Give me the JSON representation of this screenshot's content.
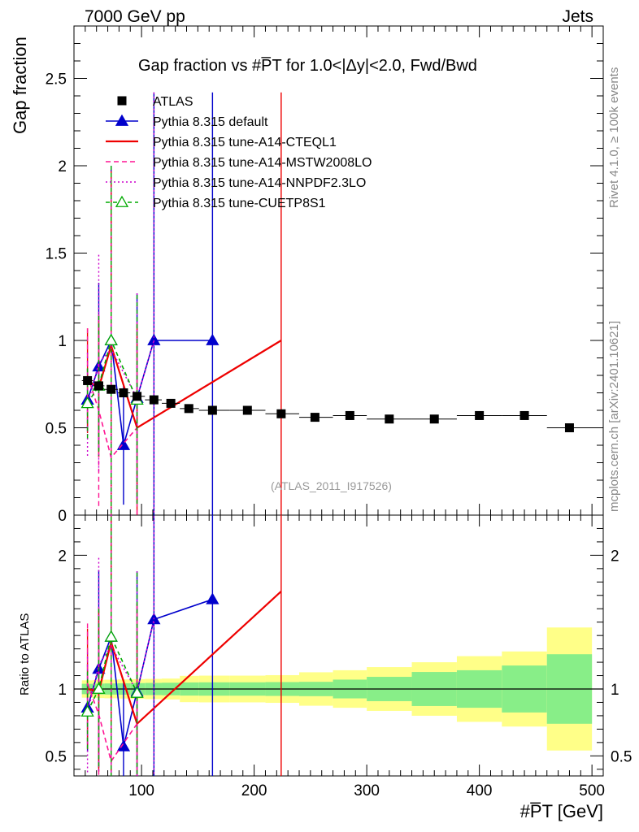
{
  "header": {
    "energy_label": "7000 GeV pp",
    "category_label": "Jets",
    "plot_title": "Gap fraction vs #P̅T for 1.0<|Δy|<2.0, Fwd/Bwd",
    "analysis_id": "(ATLAS_2011_I917526)",
    "side_label_rivet": "Rivet 4.1.0, ≥ 100k events",
    "side_label_mcplots": "mcplots.cern.ch [arXiv:2401.10621]"
  },
  "chart_data": {
    "type": "scatter",
    "xlabel": "#P̅T [GeV]",
    "ylabel": "Gap fraction",
    "ratio_ylabel": "Ratio to ATLAS",
    "xlim": [
      40,
      510
    ],
    "ylim": [
      0,
      2.8
    ],
    "ratio_ylim": [
      0.35,
      2.3
    ],
    "xticks": [
      100,
      200,
      300,
      400,
      500
    ],
    "yticks": [
      0.5,
      1,
      1.5,
      2,
      2.5
    ],
    "yticklabels": [
      "0.5",
      "1",
      "1.5",
      "2",
      "2.5"
    ],
    "ratio_yticks": [
      0.5,
      1,
      2
    ],
    "ratio_yticklabels": [
      "0.5",
      "1",
      "2"
    ],
    "y_zero_label": "0",
    "data": {
      "name": "ATLAS",
      "x": [
        52,
        62,
        73,
        84,
        96,
        111,
        126,
        142,
        163,
        194,
        224,
        254,
        285,
        320,
        360,
        400,
        440,
        480
      ],
      "y": [
        0.77,
        0.74,
        0.72,
        0.7,
        0.68,
        0.66,
        0.64,
        0.61,
        0.6,
        0.6,
        0.58,
        0.56,
        0.57,
        0.55,
        0.55,
        0.57,
        0.57,
        0.5
      ],
      "xlo": [
        47,
        57,
        67,
        79,
        90,
        103,
        118,
        134,
        151,
        178,
        210,
        240,
        270,
        300,
        340,
        380,
        420,
        460
      ],
      "xhi": [
        57,
        67,
        79,
        90,
        103,
        118,
        134,
        151,
        178,
        210,
        240,
        270,
        300,
        340,
        380,
        420,
        460,
        500
      ],
      "stat": [
        0.03,
        0.03,
        0.03,
        0.03,
        0.03,
        0.03,
        0.03,
        0.03,
        0.03,
        0.03,
        0.03,
        0.03,
        0.04,
        0.05,
        0.07,
        0.08,
        0.1,
        0.13
      ],
      "tot": [
        0.05,
        0.05,
        0.05,
        0.05,
        0.05,
        0.05,
        0.05,
        0.06,
        0.06,
        0.06,
        0.06,
        0.07,
        0.08,
        0.09,
        0.11,
        0.14,
        0.16,
        0.23
      ]
    },
    "series": [
      {
        "name": "Pythia 8.315 default",
        "color": "#0000cc",
        "dash": "",
        "marker": "triangle-filled",
        "x": [
          52,
          62,
          73,
          84,
          96,
          111,
          163
        ],
        "y": [
          0.66,
          0.85,
          1.0,
          0.4,
          0.67,
          1.0,
          1.0
        ],
        "err": [
          0.18,
          0.48,
          1.0,
          0.34,
          0.6,
          1.42,
          1.42
        ],
        "ratio": [
          0.86,
          1.15,
          1.39,
          0.57,
          0.98,
          1.52,
          1.67
        ],
        "ratio_err": [
          0.33,
          0.74,
          1.5,
          0.5,
          0.9,
          2.2,
          2.4
        ]
      },
      {
        "name": "Pythia 8.315 tune-A14-CTEQL1",
        "color": "#ee0000",
        "dash": "",
        "marker": "none",
        "x": [
          52,
          62,
          73,
          96,
          224
        ],
        "y": [
          0.77,
          0.73,
          0.97,
          0.5,
          1.0
        ],
        "err": [
          0.3,
          0.4,
          1.0,
          0.6,
          1.42
        ],
        "ratio": [
          1.0,
          0.98,
          1.35,
          0.74,
          1.73
        ],
        "ratio_err": [
          0.45,
          0.6,
          1.5,
          0.9,
          2.4
        ]
      },
      {
        "name": "Pythia 8.315 tune-A14-MSTW2008LO",
        "color": "#ff1493",
        "dash": "6,4",
        "marker": "none",
        "x": [
          52,
          62,
          73,
          96
        ],
        "y": [
          0.8,
          0.6,
          0.33,
          0.5
        ],
        "err": [
          0.27,
          0.55,
          1.0,
          0.6
        ],
        "ratio": [
          1.04,
          0.81,
          0.46,
          0.74
        ],
        "ratio_err": [
          0.45,
          0.8,
          1.5,
          0.9
        ]
      },
      {
        "name": "Pythia 8.315 tune-A14-NNPDF2.3LO",
        "color": "#cc00cc",
        "dash": "2,3",
        "marker": "none",
        "x": [
          52,
          62,
          73,
          96,
          111
        ],
        "y": [
          0.63,
          0.87,
          0.95,
          0.67,
          1.0
        ],
        "err": [
          0.3,
          0.62,
          1.0,
          0.6,
          1.42
        ],
        "ratio": [
          0.82,
          1.18,
          1.32,
          0.98,
          1.52
        ],
        "ratio_err": [
          0.45,
          0.8,
          1.5,
          0.9,
          2.2
        ]
      },
      {
        "name": "Pythia 8.315 tune-CUETP8S1",
        "color": "#00aa00",
        "dash": "5,4",
        "marker": "triangle-open",
        "x": [
          52,
          62,
          73,
          96
        ],
        "y": [
          0.64,
          0.74,
          1.0,
          0.66
        ],
        "err": [
          0.2,
          0.4,
          1.0,
          0.6
        ],
        "ratio": [
          0.83,
          1.0,
          1.39,
          0.97
        ],
        "ratio_err": [
          0.3,
          0.6,
          1.5,
          0.9
        ]
      }
    ]
  }
}
